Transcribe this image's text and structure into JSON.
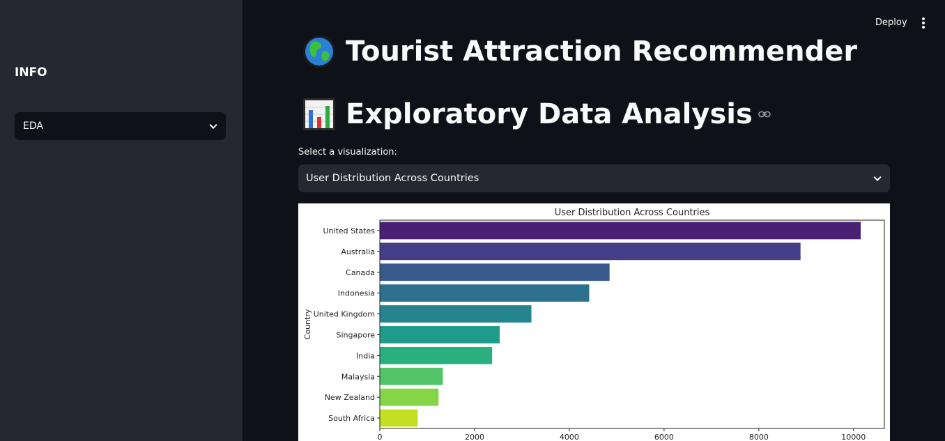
{
  "sidebar": {
    "title": "INFO",
    "select_value": "EDA"
  },
  "topbar": {
    "deploy_label": "Deploy"
  },
  "header": {
    "title": "Tourist Attraction Recommender",
    "subtitle": "Exploratory Data Analysis"
  },
  "visualization_select": {
    "label": "Select a visualization:",
    "value": "User Distribution Across Countries"
  },
  "icons": {
    "title_icon": "globe-icon",
    "subtitle_icon": "bar-chart-icon",
    "anchor_icon": "link-icon",
    "dropdown_icon": "chevron-down-icon",
    "menu_icon": "kebab-menu-icon"
  },
  "chart_data": {
    "type": "bar",
    "orientation": "horizontal",
    "title": "User Distribution Across Countries",
    "ylabel": "Country",
    "xlabel": "",
    "categories": [
      "United States",
      "Australia",
      "Canada",
      "Indonesia",
      "United Kingdom",
      "Singapore",
      "India",
      "Malaysia",
      "New Zealand",
      "South Africa"
    ],
    "values": [
      10150,
      8880,
      4850,
      4420,
      3200,
      2530,
      2370,
      1330,
      1240,
      800
    ],
    "xlim": [
      0,
      10650
    ],
    "xticks": [
      0,
      2000,
      4000,
      6000,
      8000,
      10000
    ],
    "colors": [
      "#482173",
      "#433e85",
      "#38598c",
      "#2d708e",
      "#25858e",
      "#1e9b8a",
      "#2ab07f",
      "#52c569",
      "#86d549",
      "#c2df23"
    ],
    "grid": false
  }
}
